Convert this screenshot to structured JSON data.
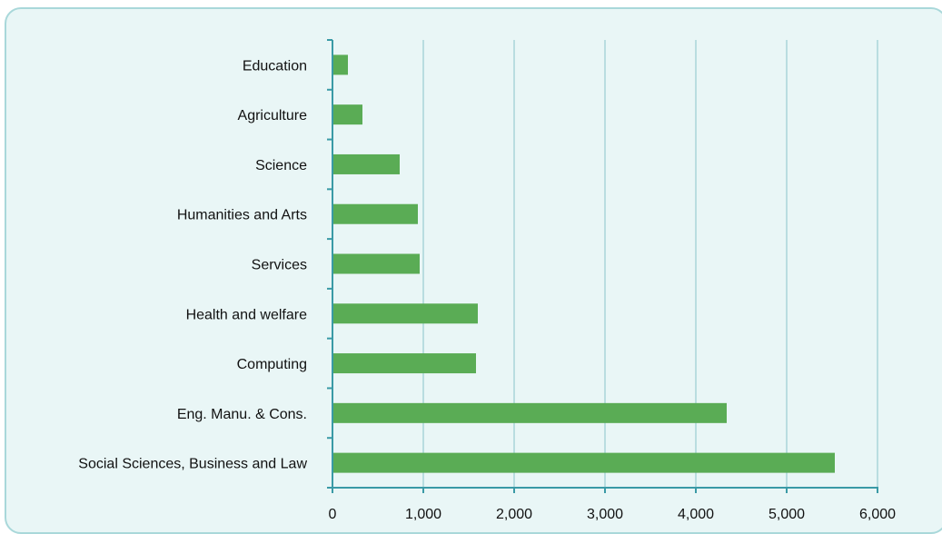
{
  "chart_data": {
    "type": "bar",
    "orientation": "horizontal",
    "categories": [
      "Education",
      "Agriculture",
      "Science",
      "Humanities and Arts",
      "Services",
      "Health and welfare",
      "Computing",
      "Eng. Manu. & Cons.",
      "Social Sciences, Business and Law"
    ],
    "values": [
      170,
      330,
      740,
      940,
      960,
      1600,
      1580,
      4340,
      5530
    ],
    "xlim": [
      0,
      6000
    ],
    "xticks": [
      0,
      1000,
      2000,
      3000,
      4000,
      5000,
      6000
    ],
    "xtick_labels": [
      "0",
      "1,000",
      "2,000",
      "3,000",
      "4,000",
      "5,000",
      "6,000"
    ],
    "title": "",
    "xlabel": "",
    "ylabel": "",
    "grid": "vertical",
    "legend": "none",
    "colors": {
      "bar": "#5aac55",
      "axis": "#3a9aa6",
      "grid": "#b9dde0",
      "background": "#e9f6f6",
      "border": "#a9d8da"
    }
  }
}
